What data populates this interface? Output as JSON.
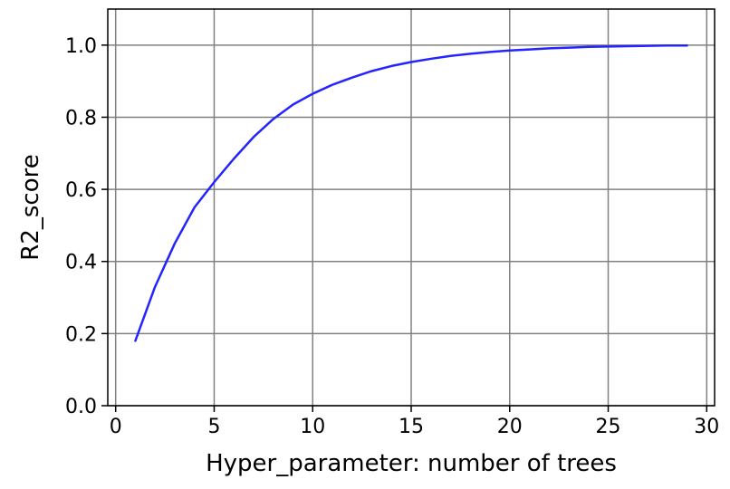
{
  "chart_data": {
    "type": "line",
    "title": "",
    "xlabel": "Hyper_parameter: number of trees",
    "ylabel": "R2_score",
    "xlim": [
      -0.4,
      30.4
    ],
    "ylim": [
      0.0,
      1.1
    ],
    "xticks": [
      0,
      5,
      10,
      15,
      20,
      25,
      30
    ],
    "yticks": [
      0.0,
      0.2,
      0.4,
      0.6,
      0.8,
      1.0
    ],
    "xtick_labels": [
      "0",
      "5",
      "10",
      "15",
      "20",
      "25",
      "30"
    ],
    "ytick_labels": [
      "0.0",
      "0.2",
      "0.4",
      "0.6",
      "0.8",
      "1.0"
    ],
    "grid": true,
    "series": [
      {
        "color": "#2424ff",
        "x": [
          1,
          2,
          3,
          4,
          5,
          6,
          7,
          8,
          9,
          10,
          11,
          12,
          13,
          14,
          15,
          16,
          17,
          18,
          19,
          20,
          21,
          22,
          23,
          24,
          25,
          26,
          27,
          28,
          29
        ],
        "y": [
          0.18,
          0.33,
          0.45,
          0.55,
          0.62,
          0.685,
          0.745,
          0.795,
          0.835,
          0.865,
          0.89,
          0.91,
          0.928,
          0.942,
          0.953,
          0.962,
          0.97,
          0.976,
          0.981,
          0.985,
          0.988,
          0.991,
          0.993,
          0.995,
          0.996,
          0.997,
          0.998,
          0.999,
          0.999
        ]
      }
    ]
  }
}
